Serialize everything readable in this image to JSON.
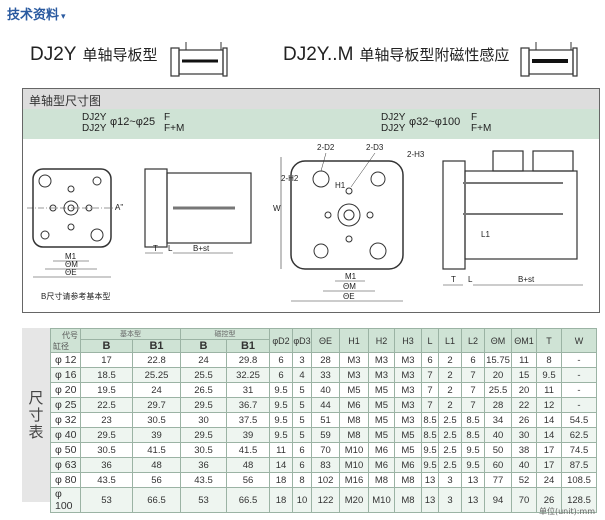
{
  "section_title": "技术资料",
  "section_caret": "▾",
  "products": [
    {
      "model": "DJ2Y",
      "name": "单轴导板型"
    },
    {
      "model": "DJ2Y..M",
      "name": "单轴导板型附磁性感应"
    }
  ],
  "drawing": {
    "title": "单轴型尺寸图",
    "left_model": {
      "line1": "DJ2Y",
      "line2": "DJ2Y",
      "range": "φ12~φ25",
      "f": "F",
      "fm": "F+M"
    },
    "right_model": {
      "line1": "DJ2Y",
      "line2": "DJ2Y",
      "range": "φ32~φ100",
      "f": "F",
      "fm": "F+M"
    },
    "labels": {
      "a": "A\"",
      "m1": "M1",
      "om": "ΘM",
      "oe": "ΘE",
      "t": "T",
      "l": "L",
      "bst": "B+st",
      "note": "B尺寸请参考基本型",
      "w": "W",
      "h2": "2-H2",
      "d2": "2-D2",
      "d3": "2-D3",
      "h3": "2-H3",
      "h1": "H1",
      "l1": "L1",
      "m1b": "M1",
      "omb": "ΘM",
      "oeb": "ΘE",
      "tb": "T",
      "lb": "L",
      "bstb": "B+st"
    }
  },
  "table": {
    "side_label": "尺寸表",
    "corner_top": "代号",
    "corner_bottom": "缸径",
    "group_basic": "基本型",
    "group_magnetic": "磁控型",
    "columns": [
      "B",
      "B1",
      "B",
      "B1",
      "φD2",
      "φD3",
      "ΘE",
      "H1",
      "H2",
      "H3",
      "L",
      "L1",
      "L2",
      "ΘM",
      "ΘM1",
      "T",
      "W"
    ],
    "rows": [
      [
        "φ 12",
        "17",
        "22.8",
        "24",
        "29.8",
        "6",
        "3",
        "28",
        "M3",
        "M3",
        "M3",
        "6",
        "2",
        "6",
        "15.75",
        "11",
        "8",
        "-"
      ],
      [
        "φ 16",
        "18.5",
        "25.25",
        "25.5",
        "32.25",
        "6",
        "4",
        "33",
        "M3",
        "M3",
        "M3",
        "7",
        "2",
        "7",
        "20",
        "15",
        "9.5",
        "-"
      ],
      [
        "φ 20",
        "19.5",
        "24",
        "26.5",
        "31",
        "9.5",
        "5",
        "40",
        "M5",
        "M5",
        "M3",
        "7",
        "2",
        "7",
        "25.5",
        "20",
        "11",
        "-"
      ],
      [
        "φ 25",
        "22.5",
        "29.7",
        "29.5",
        "36.7",
        "9.5",
        "5",
        "44",
        "M6",
        "M5",
        "M3",
        "7",
        "2",
        "7",
        "28",
        "22",
        "12",
        "-"
      ],
      [
        "φ 32",
        "23",
        "30.5",
        "30",
        "37.5",
        "9.5",
        "5",
        "51",
        "M8",
        "M5",
        "M3",
        "8.5",
        "2.5",
        "8.5",
        "34",
        "26",
        "14",
        "54.5"
      ],
      [
        "φ 40",
        "29.5",
        "39",
        "29.5",
        "39",
        "9.5",
        "5",
        "59",
        "M8",
        "M5",
        "M5",
        "8.5",
        "2.5",
        "8.5",
        "40",
        "30",
        "14",
        "62.5"
      ],
      [
        "φ 50",
        "30.5",
        "41.5",
        "30.5",
        "41.5",
        "11",
        "6",
        "70",
        "M10",
        "M6",
        "M5",
        "9.5",
        "2.5",
        "9.5",
        "50",
        "38",
        "17",
        "74.5"
      ],
      [
        "φ 63",
        "36",
        "48",
        "36",
        "48",
        "14",
        "6",
        "83",
        "M10",
        "M6",
        "M6",
        "9.5",
        "2.5",
        "9.5",
        "60",
        "40",
        "17",
        "87.5"
      ],
      [
        "φ 80",
        "43.5",
        "56",
        "43.5",
        "56",
        "18",
        "8",
        "102",
        "M16",
        "M8",
        "M8",
        "13",
        "3",
        "13",
        "77",
        "52",
        "24",
        "108.5"
      ],
      [
        "φ 100",
        "53",
        "66.5",
        "53",
        "66.5",
        "18",
        "10",
        "122",
        "M20",
        "M10",
        "M8",
        "13",
        "3",
        "13",
        "94",
        "70",
        "26",
        "128.5"
      ]
    ],
    "unit": "单位(unit):mm"
  }
}
